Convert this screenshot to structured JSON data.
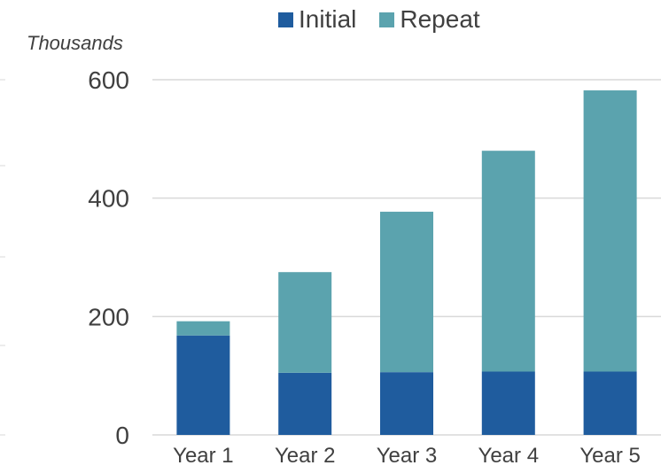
{
  "chart_data": {
    "type": "bar",
    "stacked": true,
    "unit_label": "Thousands",
    "categories": [
      "Year 1",
      "Year 2",
      "Year 3",
      "Year 4",
      "Year 5"
    ],
    "series": [
      {
        "name": "Initial",
        "color": "#1F5C9E",
        "values": [
          168,
          105,
          106,
          107,
          107
        ]
      },
      {
        "name": "Repeat",
        "color": "#5BA3AE",
        "values": [
          24,
          170,
          271,
          373,
          475
        ]
      }
    ],
    "ylim": [
      0,
      600
    ],
    "yticks": [
      0,
      200,
      400,
      600
    ],
    "grid": true,
    "legend": "top"
  }
}
